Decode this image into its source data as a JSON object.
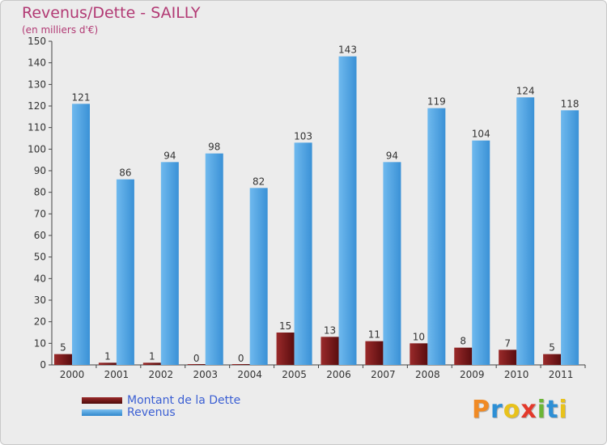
{
  "chart_data": {
    "type": "bar",
    "title": "Revenus/Dette - SAILLY",
    "subtitle": "(en milliers d'€)",
    "categories": [
      "2000",
      "2001",
      "2002",
      "2003",
      "2004",
      "2005",
      "2006",
      "2007",
      "2008",
      "2009",
      "2010",
      "2011"
    ],
    "series": [
      {
        "name": "Montant de la Dette",
        "color": "#7a1518",
        "values": [
          5,
          1,
          1,
          0,
          0,
          15,
          13,
          11,
          10,
          8,
          7,
          5
        ]
      },
      {
        "name": "Revenus",
        "color": "#4aa3e4",
        "values": [
          121,
          86,
          94,
          98,
          82,
          103,
          143,
          94,
          119,
          104,
          124,
          118
        ]
      }
    ],
    "ylim": [
      0,
      150
    ],
    "yticks": [
      0,
      10,
      20,
      30,
      40,
      50,
      60,
      70,
      80,
      90,
      100,
      110,
      120,
      130,
      140,
      150
    ],
    "grid": false,
    "legend_position": "bottom-left"
  },
  "logo_text": "Proxiti",
  "colors": {
    "title": "#b23a74",
    "legend_text": "#3b5fd3",
    "background": "#ececec",
    "logo_letters": [
      "#f08a24",
      "#2d8fd5",
      "#e8c21c",
      "#e3392b",
      "#6bb536",
      "#2d8fd5",
      "#e8c21c"
    ]
  }
}
